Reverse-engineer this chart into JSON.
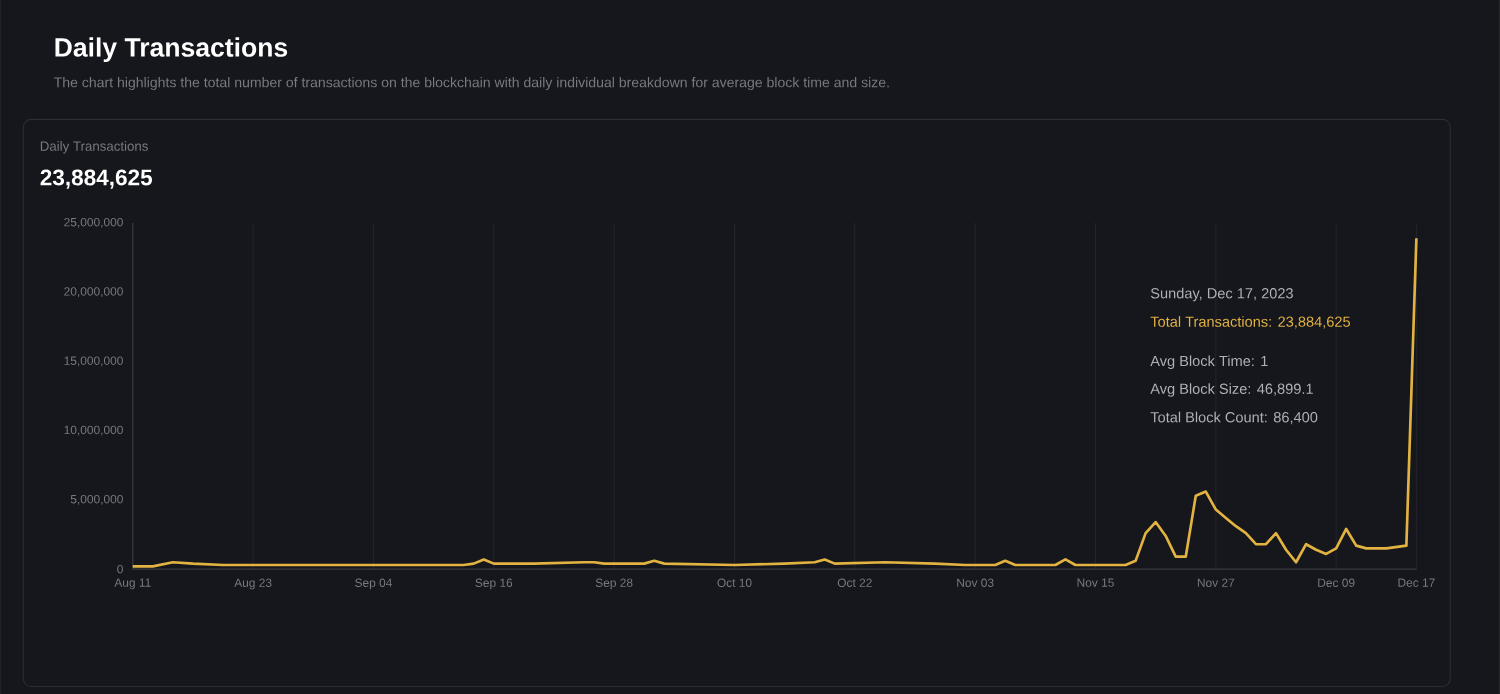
{
  "chart_data": {
    "type": "line",
    "title": "Daily Transactions",
    "subtitle": "The chart highlights the total number of transactions on the blockchain with daily individual breakdown for average block time and size.",
    "x": [
      "2023-08-11",
      "2023-08-13",
      "2023-08-15",
      "2023-08-17",
      "2023-08-20",
      "2023-08-25",
      "2023-09-01",
      "2023-09-08",
      "2023-09-13",
      "2023-09-14",
      "2023-09-15",
      "2023-09-16",
      "2023-09-20",
      "2023-09-25",
      "2023-09-26",
      "2023-09-27",
      "2023-10-01",
      "2023-10-02",
      "2023-10-03",
      "2023-10-10",
      "2023-10-15",
      "2023-10-18",
      "2023-10-19",
      "2023-10-20",
      "2023-10-25",
      "2023-10-30",
      "2023-11-02",
      "2023-11-05",
      "2023-11-06",
      "2023-11-07",
      "2023-11-11",
      "2023-11-12",
      "2023-11-13",
      "2023-11-18",
      "2023-11-19",
      "2023-11-20",
      "2023-11-21",
      "2023-11-22",
      "2023-11-23",
      "2023-11-24",
      "2023-11-25",
      "2023-11-26",
      "2023-11-27",
      "2023-11-28",
      "2023-11-29",
      "2023-11-30",
      "2023-12-01",
      "2023-12-02",
      "2023-12-03",
      "2023-12-04",
      "2023-12-05",
      "2023-12-06",
      "2023-12-07",
      "2023-12-08",
      "2023-12-09",
      "2023-12-10",
      "2023-12-11",
      "2023-12-12",
      "2023-12-14",
      "2023-12-16",
      "2023-12-17"
    ],
    "series": [
      {
        "color": "#e3b341",
        "values": [
          200000,
          200000,
          500000,
          400000,
          300000,
          300000,
          300000,
          300000,
          300000,
          400000,
          700000,
          400000,
          400000,
          500000,
          500000,
          400000,
          400000,
          600000,
          400000,
          300000,
          400000,
          500000,
          700000,
          400000,
          500000,
          400000,
          300000,
          300000,
          600000,
          300000,
          300000,
          700000,
          300000,
          300000,
          600000,
          2600000,
          3400000,
          2400000,
          900000,
          900000,
          5300000,
          5600000,
          4300000,
          3700000,
          3100000,
          2600000,
          1800000,
          1800000,
          2600000,
          1400000,
          500000,
          1800000,
          1400000,
          1100000,
          1500000,
          2900000,
          1700000,
          1500000,
          1500000,
          1700000,
          23884625
        ]
      }
    ],
    "xlim": [
      "2023-08-11",
      "2023-12-17"
    ],
    "xticks": [
      {
        "value": "2023-08-11",
        "label": "Aug 11"
      },
      {
        "value": "2023-08-23",
        "label": "Aug 23"
      },
      {
        "value": "2023-09-04",
        "label": "Sep 04"
      },
      {
        "value": "2023-09-16",
        "label": "Sep 16"
      },
      {
        "value": "2023-09-28",
        "label": "Sep 28"
      },
      {
        "value": "2023-10-10",
        "label": "Oct 10"
      },
      {
        "value": "2023-10-22",
        "label": "Oct 22"
      },
      {
        "value": "2023-11-03",
        "label": "Nov 03"
      },
      {
        "value": "2023-11-15",
        "label": "Nov 15"
      },
      {
        "value": "2023-11-27",
        "label": "Nov 27"
      },
      {
        "value": "2023-12-09",
        "label": "Dec 09"
      },
      {
        "value": "2023-12-17",
        "label": "Dec 17"
      }
    ],
    "ylim": [
      0,
      25000000
    ],
    "yticks": [
      0,
      {
        "value": 5000000,
        "label": "5,000,000"
      },
      {
        "value": 10000000,
        "label": "10,000,000"
      },
      {
        "value": 15000000,
        "label": "15,000,000"
      },
      {
        "value": 20000000,
        "label": "20,000,000"
      },
      {
        "value": 25000000,
        "label": "25,000,000"
      }
    ],
    "grid": "x",
    "annotations": [
      "Daily Transactions",
      "23,884,625",
      "Sunday, Dec 17, 2023",
      "Total Transactions: 23,884,625",
      "Avg Block Time: 1",
      "Avg Block Size: 46,899.1",
      "Total Block Count: 86,400"
    ]
  }
}
